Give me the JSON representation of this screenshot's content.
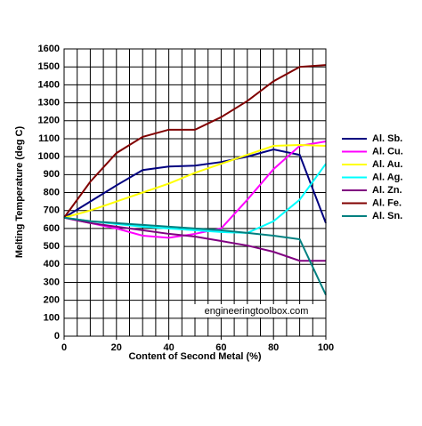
{
  "chart_data": {
    "type": "line",
    "x_label": "Content of Second Metal (%)",
    "y_label": "Melting Temperature (deg C)",
    "watermark": "engineeringtoolbox.com",
    "x": [
      0,
      10,
      20,
      30,
      40,
      50,
      60,
      70,
      80,
      90,
      100
    ],
    "series": [
      {
        "name": "Al. Sb.",
        "color": "#000080",
        "values": [
          660,
          750,
          840,
          925,
          945,
          950,
          970,
          1000,
          1040,
          1010,
          630
        ]
      },
      {
        "name": "Al. Cu.",
        "color": "#ff00ff",
        "values": [
          660,
          630,
          600,
          560,
          548,
          570,
          600,
          760,
          930,
          1060,
          1085
        ]
      },
      {
        "name": "Al. Au.",
        "color": "#ffff00",
        "values": [
          660,
          700,
          750,
          800,
          850,
          910,
          960,
          1010,
          1060,
          1065,
          1060
        ]
      },
      {
        "name": "Al. Ag.",
        "color": "#00ffff",
        "values": [
          660,
          640,
          625,
          610,
          600,
          590,
          580,
          575,
          640,
          760,
          960
        ]
      },
      {
        "name": "Al. Zn.",
        "color": "#800080",
        "values": [
          660,
          630,
          610,
          590,
          570,
          555,
          530,
          505,
          470,
          420,
          420
        ]
      },
      {
        "name": "Al. Fe.",
        "color": "#800000",
        "values": [
          660,
          860,
          1020,
          1110,
          1150,
          1150,
          1220,
          1310,
          1420,
          1500,
          1510
        ]
      },
      {
        "name": "Al. Sn.",
        "color": "#008080",
        "values": [
          660,
          640,
          630,
          620,
          610,
          600,
          590,
          575,
          560,
          540,
          230
        ]
      }
    ],
    "xlim": [
      0,
      100
    ],
    "xticks": [
      0,
      20,
      40,
      60,
      80,
      100
    ],
    "xgrid": [
      0,
      5,
      10,
      15,
      20,
      25,
      30,
      35,
      40,
      45,
      50,
      55,
      60,
      65,
      70,
      75,
      80,
      85,
      90,
      95,
      100
    ],
    "ylim": [
      0,
      1600
    ],
    "yticks": [
      0,
      100,
      200,
      300,
      400,
      500,
      600,
      700,
      800,
      900,
      1000,
      1100,
      1200,
      1300,
      1400,
      1500,
      1600
    ],
    "grid": true,
    "legend": "right"
  }
}
